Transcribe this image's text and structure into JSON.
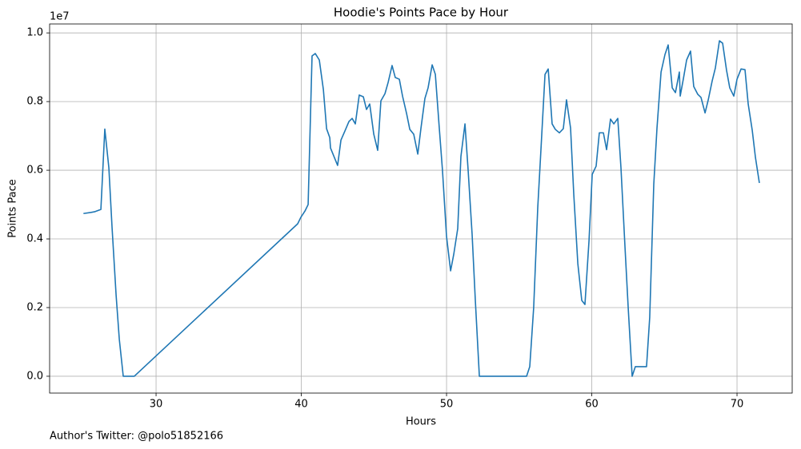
{
  "chart_data": {
    "type": "line",
    "title": "Hoodie's Points Pace by Hour",
    "x_label": "Hours",
    "y_label": "Points Pace",
    "y_offset_label": "1e7",
    "footer": "Author's Twitter: @polo51852166",
    "color": "#1f77b4",
    "grid": true,
    "xlim": [
      22.67,
      73.8
    ],
    "ylim": [
      -0.049,
      1.026
    ],
    "xticks": [
      30,
      40,
      50,
      60,
      70
    ],
    "yticks": [
      {
        "value": 0,
        "label": "0.0"
      },
      {
        "value": 0.2,
        "label": "0.2"
      },
      {
        "value": 0.4,
        "label": "0.4"
      },
      {
        "value": 0.6,
        "label": "0.6"
      },
      {
        "value": 0.8,
        "label": "0.8"
      },
      {
        "value": 1.0,
        "label": "1.0"
      }
    ],
    "x": [
      25.0,
      25.5,
      25.76,
      26.2,
      26.47,
      26.75,
      26.97,
      27.25,
      27.47,
      27.74,
      28.5,
      39.75,
      39.97,
      40.25,
      40.47,
      40.74,
      40.96,
      41.24,
      41.52,
      41.74,
      41.96,
      42.01,
      42.5,
      42.73,
      43.0,
      43.28,
      43.5,
      43.72,
      43.99,
      44.27,
      44.49,
      44.71,
      44.99,
      45.26,
      45.48,
      45.76,
      45.98,
      46.25,
      46.47,
      46.75,
      46.97,
      47.25,
      47.47,
      47.74,
      48.02,
      48.24,
      48.51,
      48.73,
      49.01,
      49.23,
      49.5,
      49.72,
      50.0,
      50.28,
      50.5,
      50.77,
      50.99,
      51.27,
      51.49,
      51.76,
      51.98,
      52.26,
      55.51,
      55.73,
      56.0,
      56.28,
      56.5,
      56.78,
      57.0,
      57.27,
      57.49,
      57.77,
      58.04,
      58.26,
      58.54,
      58.76,
      59.04,
      59.31,
      59.53,
      59.81,
      60.03,
      60.3,
      60.52,
      60.8,
      61.02,
      61.29,
      61.52,
      61.79,
      62.01,
      62.29,
      62.51,
      62.78,
      63.0,
      63.77,
      63.99,
      64.27,
      64.49,
      64.77,
      65.04,
      65.26,
      65.54,
      65.76,
      66.03,
      66.09,
      66.31,
      66.53,
      66.8,
      67.02,
      67.3,
      67.52,
      67.8,
      68.02,
      68.29,
      68.51,
      68.79,
      69.01,
      69.28,
      69.5,
      69.78,
      70.0,
      70.28,
      70.55,
      70.77,
      71.05,
      71.27,
      71.54
    ],
    "y": [
      0.474,
      0.477,
      0.479,
      0.486,
      0.72,
      0.607,
      0.433,
      0.235,
      0.107,
      0.0,
      0.0,
      0.444,
      0.463,
      0.481,
      0.5,
      0.933,
      0.94,
      0.921,
      0.835,
      0.721,
      0.695,
      0.665,
      0.614,
      0.688,
      0.714,
      0.742,
      0.751,
      0.735,
      0.819,
      0.814,
      0.777,
      0.793,
      0.705,
      0.658,
      0.802,
      0.823,
      0.856,
      0.905,
      0.87,
      0.865,
      0.816,
      0.765,
      0.719,
      0.705,
      0.647,
      0.723,
      0.809,
      0.84,
      0.907,
      0.879,
      0.723,
      0.6,
      0.407,
      0.307,
      0.356,
      0.43,
      0.64,
      0.735,
      0.598,
      0.414,
      0.223,
      0.0,
      0.0,
      0.028,
      0.2,
      0.491,
      0.66,
      0.879,
      0.895,
      0.735,
      0.719,
      0.709,
      0.721,
      0.805,
      0.723,
      0.53,
      0.328,
      0.221,
      0.209,
      0.395,
      0.588,
      0.612,
      0.709,
      0.709,
      0.66,
      0.749,
      0.735,
      0.751,
      0.607,
      0.374,
      0.198,
      0.0,
      0.028,
      0.028,
      0.172,
      0.56,
      0.723,
      0.886,
      0.937,
      0.965,
      0.84,
      0.826,
      0.886,
      0.816,
      0.867,
      0.921,
      0.947,
      0.844,
      0.821,
      0.812,
      0.767,
      0.805,
      0.86,
      0.898,
      0.977,
      0.97,
      0.891,
      0.84,
      0.816,
      0.865,
      0.895,
      0.893,
      0.793,
      0.716,
      0.637,
      0.563
    ]
  }
}
